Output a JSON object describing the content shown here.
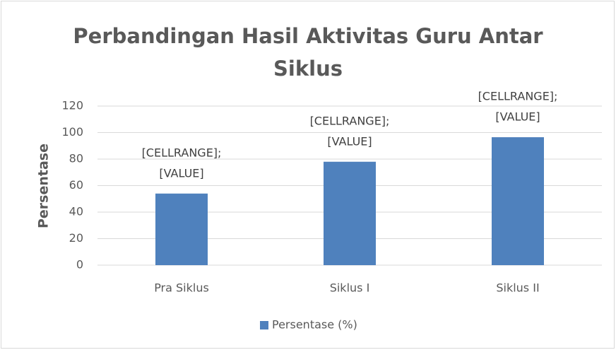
{
  "chart_data": {
    "type": "bar",
    "title": "Perbandingan Hasil Aktivitas Guru Antar Siklus",
    "y_label": "Persentase",
    "categories": [
      "Pra Siklus",
      "Siklus I",
      "Siklus II"
    ],
    "series": [
      {
        "name": "Persentase (%)",
        "color": "#4f81bd",
        "values": [
          54,
          78,
          96.5
        ]
      }
    ],
    "data_labels": [
      [
        "[CELLRANGE];",
        "[VALUE]"
      ],
      [
        "[CELLRANGE];",
        "[VALUE]"
      ],
      [
        "[CELLRANGE];",
        "[VALUE]"
      ]
    ],
    "ylim": [
      0,
      120
    ],
    "yticks": [
      0,
      20,
      40,
      60,
      80,
      100,
      120
    ],
    "grid": true,
    "legend": "bottom"
  }
}
